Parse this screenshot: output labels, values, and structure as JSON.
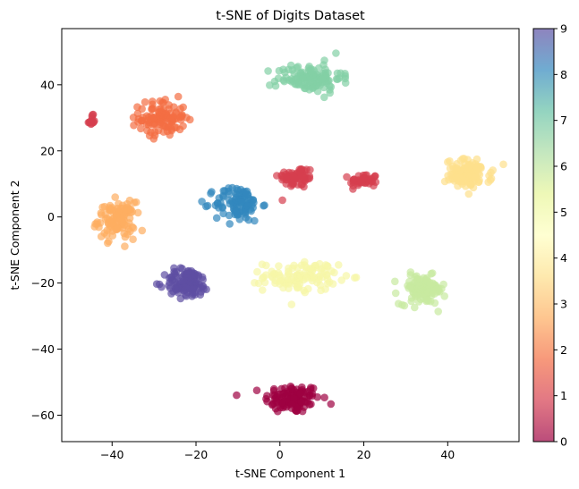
{
  "chart_data": {
    "type": "scatter",
    "title": "t-SNE of Digits Dataset",
    "xlabel": "t-SNE Component 1",
    "ylabel": "t-SNE Component 2",
    "xlim": [
      -52,
      57
    ],
    "ylim": [
      -68,
      57
    ],
    "xticks": [
      "−40",
      "−20",
      "0",
      "20",
      "40"
    ],
    "xtick_values": [
      -40,
      -20,
      0,
      20,
      40
    ],
    "yticks": [
      "−60",
      "−40",
      "−20",
      "0",
      "20",
      "40"
    ],
    "ytick_values": [
      -60,
      -40,
      -20,
      0,
      20,
      40
    ],
    "grid": false,
    "colormap": "Spectral",
    "point_alpha": 0.7,
    "colorbar": {
      "min": 0,
      "max": 9,
      "ticks": [
        "0",
        "1",
        "2",
        "3",
        "4",
        "5",
        "6",
        "7",
        "8",
        "9"
      ],
      "stops": [
        "#9e0142",
        "#d53e4f",
        "#f46d43",
        "#fdae61",
        "#fee08b",
        "#ffffbf",
        "#e6f598",
        "#abdda4",
        "#66c2a5",
        "#3288bd",
        "#5e4fa2"
      ]
    },
    "clusters": [
      {
        "digit": 0,
        "color": "#9e0142",
        "center": [
          3,
          -55
        ],
        "spread": [
          6,
          4
        ],
        "n": 120
      },
      {
        "digit": 1,
        "color": "#d53e4f",
        "center": [
          4,
          12
        ],
        "spread": [
          4,
          3
        ],
        "n": 60
      },
      {
        "digit": 1,
        "color": "#d53e4f",
        "center": [
          20,
          11
        ],
        "spread": [
          3,
          2
        ],
        "n": 40
      },
      {
        "digit": 1,
        "color": "#d53e4f",
        "center": [
          -45,
          29
        ],
        "spread": [
          1,
          1.5
        ],
        "n": 15
      },
      {
        "digit": 2,
        "color": "#f46d43",
        "center": [
          -28,
          30
        ],
        "spread": [
          5,
          5
        ],
        "n": 110
      },
      {
        "digit": 3,
        "color": "#fdae61",
        "center": [
          -39,
          -1
        ],
        "spread": [
          4,
          5
        ],
        "n": 110
      },
      {
        "digit": 4,
        "color": "#fee08b",
        "center": [
          45,
          13
        ],
        "spread": [
          5,
          4
        ],
        "n": 110
      },
      {
        "digit": 5,
        "color": "#f6f7a6",
        "center": [
          5,
          -18
        ],
        "spread": [
          8,
          4
        ],
        "n": 110
      },
      {
        "digit": 6,
        "color": "#c7e9a0",
        "center": [
          34,
          -22
        ],
        "spread": [
          5,
          4
        ],
        "n": 110
      },
      {
        "digit": 7,
        "color": "#83d0a5",
        "center": [
          7,
          42
        ],
        "spread": [
          7,
          4
        ],
        "n": 120
      },
      {
        "digit": 8,
        "color": "#3288bd",
        "center": [
          -10,
          4
        ],
        "spread": [
          5,
          5
        ],
        "n": 100
      },
      {
        "digit": 9,
        "color": "#5e4fa2",
        "center": [
          -22,
          -20
        ],
        "spread": [
          5,
          4
        ],
        "n": 110
      }
    ]
  }
}
